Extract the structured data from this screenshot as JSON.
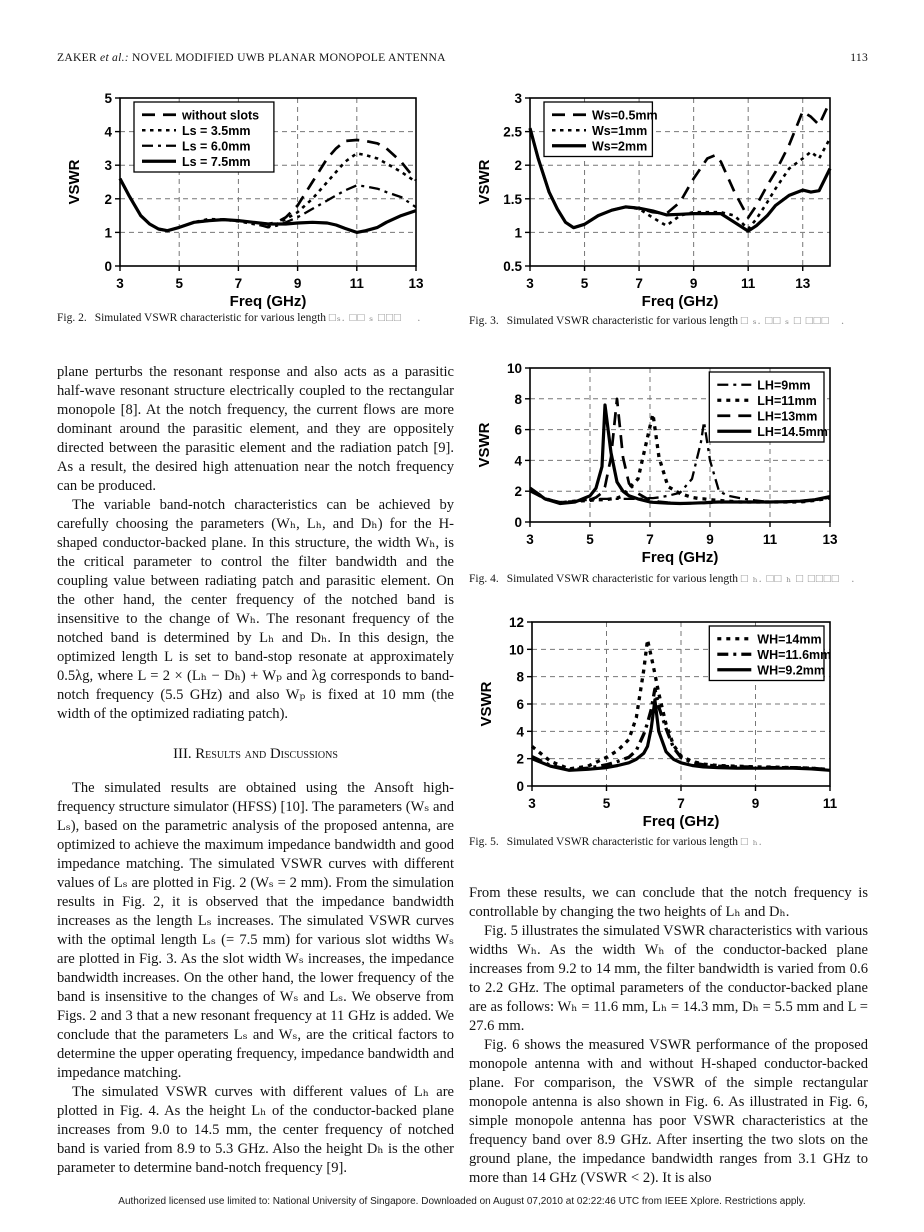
{
  "header": {
    "running_head_author": "ZAKER ",
    "running_head_etal": "et al.: ",
    "running_head_title": "NOVEL MODIFIED UWB PLANAR MONOPOLE ANTENNA",
    "page_number": "113"
  },
  "figures": {
    "fig2": {
      "label": "Fig. 2.",
      "body": "Simulated VSWR characteristic for various length",
      "math": "□ₛ. □□ ₛ □□□    ."
    },
    "fig3": {
      "label": "Fig. 3.",
      "body": "Simulated VSWR characteristic for various length",
      "math": "□ ₛ. □□ ₛ □ □□□   ."
    },
    "fig4": {
      "label": "Fig. 4.",
      "body": "Simulated VSWR characteristic for various length",
      "math": "□ ₕ. □□ ₕ □ □□□□   ."
    },
    "fig5": {
      "label": "Fig. 5.",
      "body": "Simulated VSWR characteristic for various length",
      "math": "□ ₕ."
    }
  },
  "left_column": {
    "p1": "plane perturbs the resonant response and also acts as a parasitic half-wave resonant structure electrically coupled to the rectangular monopole [8]. At the notch frequency, the current flows are more dominant around the parasitic element, and they are oppositely directed between the parasitic element and the radiation patch [9]. As a result, the desired high attenuation near the notch frequency can be produced.",
    "p2": "The variable band-notch characteristics can be achieved by carefully choosing the parameters (Wₕ, Lₕ, and Dₕ) for the H-shaped conductor-backed plane. In this structure, the width Wₕ, is the critical parameter to control the filter bandwidth and the coupling value between radiating patch and parasitic element. On the other hand, the center frequency of the notched band is insensitive to the change of Wₕ. The resonant frequency of the notched band is determined by Lₕ and Dₕ. In this design, the optimized length L is set to band-stop resonate at approximately 0.5λg, where L = 2 × (Lₕ − Dₕ) + Wₚ and λg corresponds to band-notch frequency (5.5 GHz) and also Wₚ is fixed at 10 mm (the width of the optimized radiating patch).",
    "section_heading": "III.   Results and Discussions",
    "p3": "The simulated results are obtained using the Ansoft high-frequency structure simulator (HFSS) [10]. The parameters (Wₛ and Lₛ), based on the parametric analysis of the proposed antenna, are optimized to achieve the maximum impedance bandwidth and good impedance matching. The simulated VSWR curves with different values of Lₛ are plotted in Fig. 2 (Wₛ = 2 mm). From the simulation results in Fig. 2, it is observed that the impedance bandwidth increases as the length Lₛ increases. The simulated VSWR curves with the optimal length Lₛ (= 7.5 mm) for various slot widths Wₛ are plotted in Fig. 3. As the slot width Wₛ increases, the impedance bandwidth increases. On the other hand, the lower frequency of the band is insensitive to the changes of Wₛ and Lₛ. We observe from Figs. 2 and 3 that a new resonant frequency at 11 GHz is added. We conclude that the parameters Lₛ and Wₛ, are the critical factors to determine the upper operating frequency, impedance bandwidth and impedance matching.",
    "p4": "The simulated VSWR curves with different values of Lₕ are plotted in Fig. 4. As the height Lₕ of the conductor-backed plane increases from 9.0 to 14.5 mm, the center frequency of notched band is varied from 8.9 to 5.3 GHz. Also the height Dₕ is the other parameter to determine band-notch frequency [9]."
  },
  "right_column": {
    "p1": "From these results, we can conclude that the notch frequency is controllable by changing the two heights of Lₕ and Dₕ.",
    "p2": "Fig. 5 illustrates the simulated VSWR characteristics with various widths Wₕ. As the width Wₕ of the conductor-backed plane increases from 9.2 to 14 mm, the filter bandwidth is varied from 0.6 to 2.2 GHz. The optimal parameters of the conductor-backed plane are as follows: Wₕ = 11.6 mm, Lₕ = 14.3 mm, Dₕ = 5.5 mm and L = 27.6 mm.",
    "p3": "Fig. 6 shows the measured VSWR performance of the proposed monopole antenna with and without H-shaped conductor-backed plane. For comparison, the VSWR of the simple rectangular monopole antenna is also shown in Fig. 6. As illustrated in Fig. 6, simple monopole antenna has poor VSWR characteristics at the frequency band over 8.9 GHz. After inserting the two slots on the ground plane, the impedance bandwidth ranges from 3.1 GHz to more than 14 GHz (VSWR < 2). It is also"
  },
  "footer": {
    "license_text": "Authorized licensed use limited to: National University of Singapore. Downloaded on August 07,2010 at 02:22:46 UTC from IEEE Xplore.  Restrictions apply."
  },
  "chart_data": [
    {
      "id": "fig2",
      "type": "line",
      "title": "",
      "xlabel": "Freq (GHz)",
      "ylabel": "VSWR",
      "xlim": [
        3,
        13
      ],
      "ylim": [
        0,
        5
      ],
      "xticks": [
        3,
        5,
        7,
        9,
        11,
        13
      ],
      "yticks": [
        0,
        1,
        2,
        3,
        4,
        5
      ],
      "grid": true,
      "legend_pos": "nw",
      "x": [
        3,
        3.3,
        3.7,
        4,
        4.3,
        4.6,
        5,
        5.5,
        6,
        6.5,
        7,
        7.5,
        8,
        8.3,
        8.6,
        9,
        9.5,
        10,
        10.3,
        10.6,
        11,
        11.3,
        11.7,
        12,
        12.5,
        13
      ],
      "series": [
        {
          "name": "without slots",
          "line_style": "dashed",
          "y": [
            2.6,
            2.1,
            1.5,
            1.25,
            1.1,
            1.05,
            1.15,
            1.3,
            1.35,
            1.38,
            1.35,
            1.3,
            1.25,
            1.3,
            1.45,
            1.8,
            2.5,
            3.2,
            3.5,
            3.72,
            3.75,
            3.72,
            3.65,
            3.5,
            3.1,
            2.55
          ]
        },
        {
          "name": "Ls = 3.5mm",
          "line_style": "dotted",
          "y": [
            2.6,
            2.1,
            1.5,
            1.25,
            1.1,
            1.05,
            1.15,
            1.3,
            1.4,
            1.38,
            1.33,
            1.25,
            1.18,
            1.25,
            1.4,
            1.6,
            2.0,
            2.5,
            2.8,
            3.1,
            3.35,
            3.3,
            3.2,
            3.05,
            2.8,
            2.5
          ]
        },
        {
          "name": "Ls = 6.0mm",
          "line_style": "dash-dot",
          "y": [
            2.6,
            2.1,
            1.5,
            1.25,
            1.1,
            1.05,
            1.15,
            1.3,
            1.35,
            1.38,
            1.35,
            1.28,
            1.15,
            1.2,
            1.3,
            1.45,
            1.7,
            1.95,
            2.1,
            2.25,
            2.4,
            2.37,
            2.3,
            2.2,
            2.05,
            1.75
          ]
        },
        {
          "name": "Ls = 7.5mm",
          "line_style": "solid",
          "y": [
            2.6,
            2.1,
            1.5,
            1.25,
            1.1,
            1.05,
            1.15,
            1.3,
            1.35,
            1.38,
            1.35,
            1.3,
            1.25,
            1.25,
            1.25,
            1.28,
            1.3,
            1.28,
            1.22,
            1.12,
            1.0,
            1.05,
            1.15,
            1.3,
            1.5,
            1.65
          ]
        }
      ]
    },
    {
      "id": "fig3",
      "type": "line",
      "title": "",
      "xlabel": "Freq (GHz)",
      "ylabel": "VSWR",
      "xlim": [
        3,
        14
      ],
      "ylim": [
        0.5,
        3
      ],
      "xticks": [
        3,
        5,
        7,
        9,
        11,
        13
      ],
      "yticks": [
        0.5,
        1,
        1.5,
        2,
        2.5,
        3
      ],
      "grid": true,
      "legend_pos": "nw",
      "x": [
        3,
        3.3,
        3.7,
        4,
        4.3,
        4.6,
        5,
        5.5,
        6,
        6.5,
        7,
        7.5,
        8,
        8.5,
        9,
        9.5,
        9.8,
        10,
        10.5,
        11,
        11.3,
        11.7,
        12,
        12.5,
        13,
        13.3,
        13.6,
        14
      ],
      "series": [
        {
          "name": "Ws=0.5mm",
          "line_style": "dashed",
          "y": [
            2.55,
            2.1,
            1.6,
            1.35,
            1.15,
            1.07,
            1.12,
            1.25,
            1.33,
            1.38,
            1.36,
            1.3,
            1.28,
            1.45,
            1.8,
            2.1,
            2.15,
            2.05,
            1.6,
            1.22,
            1.4,
            1.7,
            1.9,
            2.3,
            2.8,
            2.72,
            2.6,
            2.95
          ]
        },
        {
          "name": "Ws=1mm",
          "line_style": "dotted",
          "y": [
            2.55,
            2.1,
            1.6,
            1.35,
            1.15,
            1.07,
            1.12,
            1.25,
            1.33,
            1.38,
            1.35,
            1.22,
            1.1,
            1.25,
            1.3,
            1.3,
            1.3,
            1.3,
            1.25,
            1.05,
            1.2,
            1.45,
            1.65,
            1.95,
            2.1,
            2.2,
            2.1,
            2.4
          ]
        },
        {
          "name": "Ws=2mm",
          "line_style": "solid",
          "y": [
            2.55,
            2.1,
            1.6,
            1.35,
            1.15,
            1.07,
            1.12,
            1.25,
            1.33,
            1.38,
            1.36,
            1.32,
            1.26,
            1.27,
            1.28,
            1.28,
            1.28,
            1.28,
            1.15,
            1.02,
            1.1,
            1.25,
            1.4,
            1.55,
            1.63,
            1.6,
            1.62,
            1.95
          ]
        }
      ]
    },
    {
      "id": "fig4",
      "type": "line",
      "title": "",
      "xlabel": "Freq (GHz)",
      "ylabel": "VSWR",
      "xlim": [
        3,
        13
      ],
      "ylim": [
        0,
        10
      ],
      "xticks": [
        3,
        5,
        7,
        9,
        11,
        13
      ],
      "yticks": [
        0,
        2,
        4,
        6,
        8,
        10
      ],
      "grid": true,
      "legend_pos": "ne",
      "x": [
        3,
        3.5,
        4,
        4.5,
        5,
        5.2,
        5.4,
        5.5,
        5.7,
        5.9,
        6.1,
        6.3,
        6.6,
        7,
        7.1,
        7.3,
        7.6,
        8,
        8.4,
        8.7,
        8.8,
        9,
        9.3,
        9.6,
        10,
        10.5,
        11,
        11.5,
        12,
        12.5,
        13
      ],
      "series": [
        {
          "name": "LH=9mm",
          "line_style": "dash-dot",
          "y": [
            2.0,
            1.5,
            1.3,
            1.35,
            1.45,
            1.5,
            1.5,
            1.5,
            1.5,
            1.5,
            1.5,
            1.5,
            1.5,
            1.55,
            1.55,
            1.6,
            1.7,
            1.9,
            2.8,
            5.2,
            6.5,
            4.0,
            2.0,
            1.7,
            1.55,
            1.4,
            1.3,
            1.3,
            1.3,
            1.4,
            1.6
          ]
        },
        {
          "name": "LH=11mm",
          "line_style": "dotted-bold",
          "y": [
            2.1,
            1.5,
            1.25,
            1.35,
            1.4,
            1.45,
            1.45,
            1.45,
            1.5,
            1.55,
            1.7,
            2.2,
            2.8,
            6.2,
            7.0,
            4.2,
            2.3,
            1.85,
            1.6,
            1.5,
            1.5,
            1.45,
            1.4,
            1.35,
            1.3,
            1.3,
            1.3,
            1.3,
            1.3,
            1.4,
            1.55
          ]
        },
        {
          "name": "LH=13mm",
          "line_style": "dashed",
          "y": [
            2.2,
            1.55,
            1.25,
            1.35,
            1.45,
            1.6,
            1.9,
            2.3,
            4.2,
            8.0,
            4.2,
            2.5,
            1.85,
            1.4,
            1.38,
            1.32,
            1.26,
            1.2,
            1.22,
            1.25,
            1.25,
            1.25,
            1.28,
            1.3,
            1.3,
            1.3,
            1.3,
            1.3,
            1.35,
            1.45,
            1.6
          ]
        },
        {
          "name": "LH=14.5mm",
          "line_style": "solid",
          "y": [
            2.2,
            1.5,
            1.2,
            1.3,
            1.7,
            2.2,
            3.6,
            7.6,
            4.5,
            2.6,
            2.0,
            1.7,
            1.5,
            1.3,
            1.28,
            1.26,
            1.23,
            1.2,
            1.22,
            1.25,
            1.25,
            1.28,
            1.3,
            1.3,
            1.3,
            1.3,
            1.3,
            1.32,
            1.35,
            1.45,
            1.65
          ]
        }
      ]
    },
    {
      "id": "fig5",
      "type": "line",
      "title": "",
      "xlabel": "Freq (GHz)",
      "ylabel": "VSWR",
      "xlim": [
        3,
        11
      ],
      "ylim": [
        0,
        12
      ],
      "xticks": [
        3,
        5,
        7,
        9,
        11
      ],
      "yticks": [
        0,
        2,
        4,
        6,
        8,
        10,
        12
      ],
      "grid": true,
      "legend_pos": "ne",
      "x": [
        3,
        3.5,
        4,
        4.5,
        5,
        5.3,
        5.6,
        5.8,
        6,
        6.1,
        6.2,
        6.3,
        6.4,
        6.6,
        6.8,
        7,
        7.3,
        7.6,
        8,
        8.5,
        9,
        9.5,
        10,
        10.5,
        11
      ],
      "series": [
        {
          "name": "WH=14mm",
          "line_style": "dotted-bold",
          "y": [
            2.9,
            1.8,
            1.25,
            1.45,
            2.1,
            2.6,
            3.4,
            5.0,
            8.5,
            10.7,
            9.5,
            8.2,
            6.8,
            4.5,
            3.0,
            2.2,
            1.8,
            1.6,
            1.5,
            1.45,
            1.4,
            1.38,
            1.35,
            1.3,
            1.2
          ]
        },
        {
          "name": "WH=11.6mm",
          "line_style": "dash-dot-bold",
          "y": [
            2.15,
            1.5,
            1.2,
            1.3,
            1.55,
            1.8,
            2.1,
            2.6,
            3.8,
            4.6,
            5.6,
            7.1,
            5.8,
            4.2,
            2.8,
            2.1,
            1.7,
            1.55,
            1.45,
            1.4,
            1.38,
            1.35,
            1.35,
            1.3,
            1.18
          ]
        },
        {
          "name": "WH=9.2mm",
          "line_style": "solid",
          "y": [
            2.0,
            1.45,
            1.15,
            1.22,
            1.35,
            1.5,
            1.7,
            1.95,
            2.4,
            2.9,
            4.2,
            6.3,
            4.0,
            2.5,
            1.95,
            1.7,
            1.5,
            1.4,
            1.35,
            1.3,
            1.3,
            1.3,
            1.3,
            1.25,
            1.15
          ]
        }
      ]
    }
  ]
}
